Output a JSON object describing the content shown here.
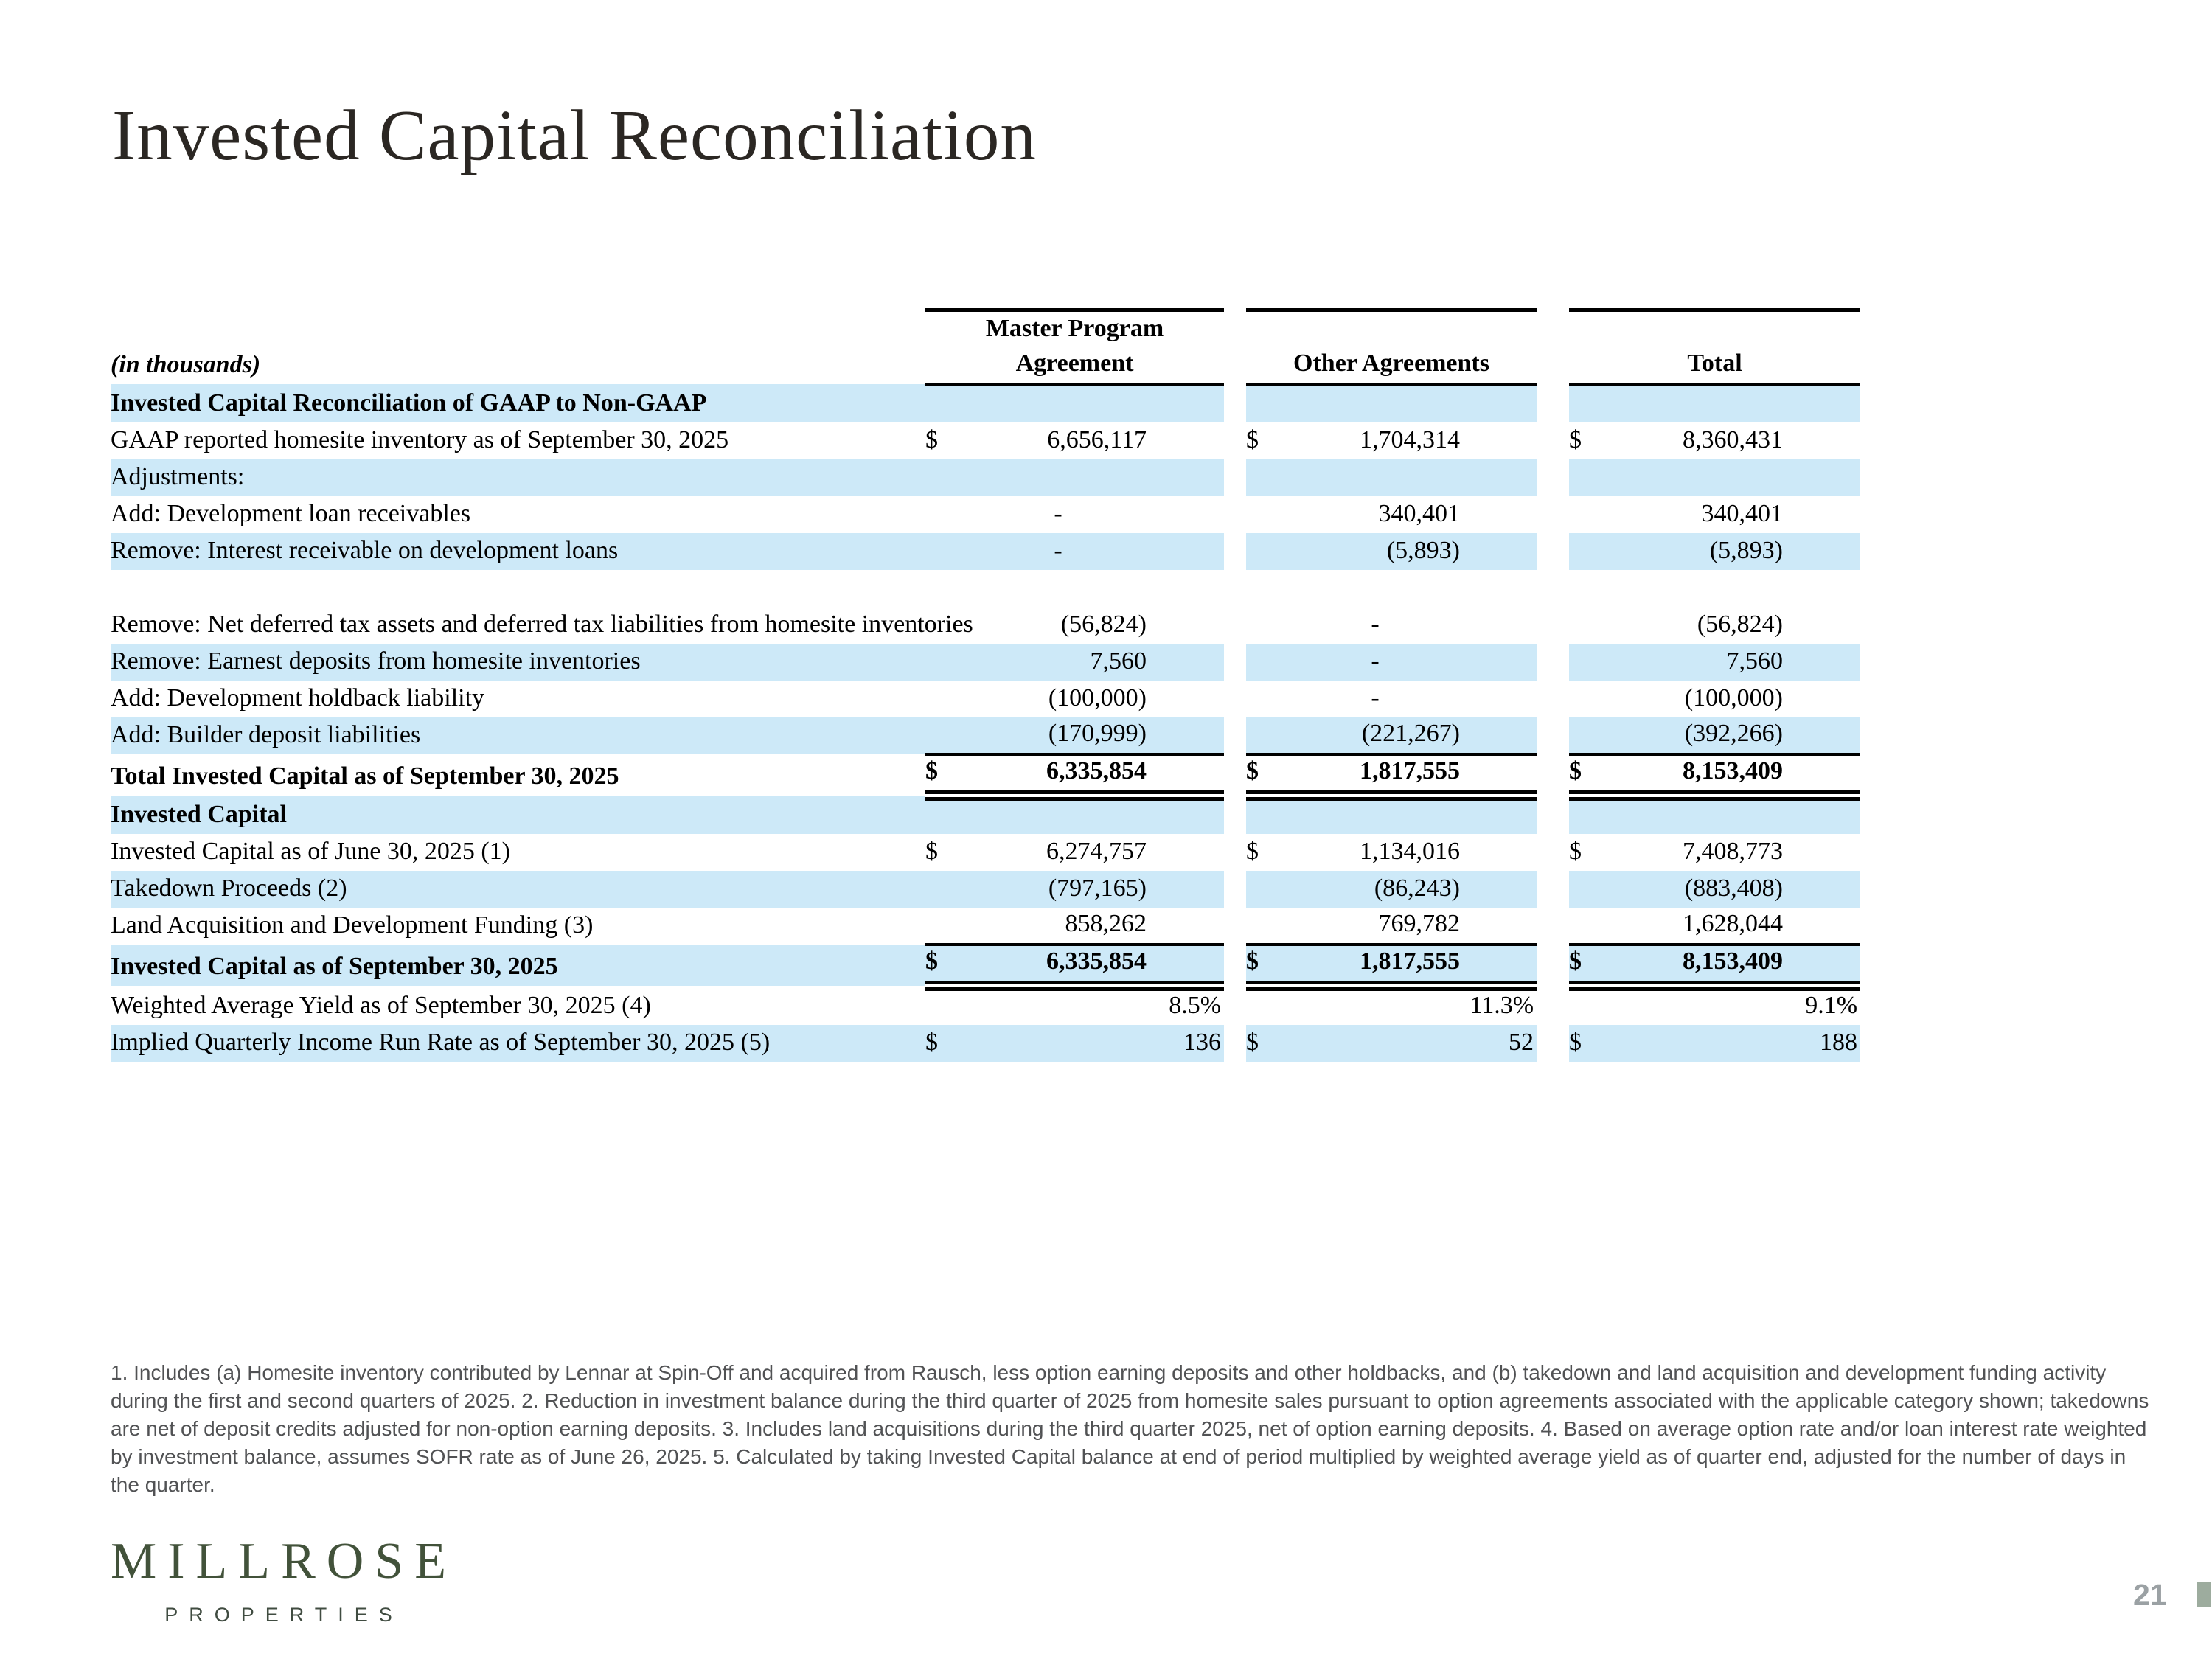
{
  "title": "Invested Capital Reconciliation",
  "table": {
    "corner_label": "(in thousands)",
    "columns": {
      "group1_line1": "Master Program",
      "group1_line2": "Agreement",
      "group2": "Other Agreements",
      "group3": "Total"
    },
    "rows": [
      {
        "label": "Invested Capital Reconciliation of GAAP to Non-GAAP",
        "indent": 0,
        "bold": true,
        "bg": "blue",
        "h": 52,
        "edge": false,
        "rule_top": false,
        "rule_dbl": false,
        "cells": [
          {
            "d": "",
            "v": ""
          },
          {
            "d": "",
            "v": ""
          },
          {
            "d": "",
            "v": ""
          }
        ]
      },
      {
        "label": "GAAP reported homesite inventory as of September 30, 2025",
        "indent": 1,
        "bold": false,
        "bg": "white",
        "h": 50,
        "edge": false,
        "rule_top": false,
        "rule_dbl": false,
        "cells": [
          {
            "d": "$",
            "v": "6,656,117"
          },
          {
            "d": "$",
            "v": "1,704,314"
          },
          {
            "d": "$",
            "v": "8,360,431"
          }
        ]
      },
      {
        "label": "Adjustments:",
        "indent": 1,
        "bold": false,
        "bg": "blue",
        "h": 50,
        "edge": false,
        "rule_top": false,
        "rule_dbl": false,
        "cells": [
          {
            "d": "",
            "v": ""
          },
          {
            "d": "",
            "v": ""
          },
          {
            "d": "",
            "v": ""
          }
        ]
      },
      {
        "label": "Add: Development loan receivables",
        "indent": 2,
        "bold": false,
        "bg": "white",
        "h": 50,
        "edge": false,
        "rule_top": false,
        "rule_dbl": false,
        "cells": [
          {
            "d": "",
            "v": "-"
          },
          {
            "d": "",
            "v": "340,401"
          },
          {
            "d": "",
            "v": "340,401"
          }
        ]
      },
      {
        "label": "Remove: Interest receivable on development loans",
        "indent": 2,
        "bold": false,
        "bg": "blue",
        "h": 50,
        "edge": false,
        "rule_top": false,
        "rule_dbl": false,
        "cells": [
          {
            "d": "",
            "v": "-"
          },
          {
            "d": "",
            "v": "(5,893)"
          },
          {
            "d": "",
            "v": "(5,893)"
          }
        ]
      },
      {
        "label": "Remove: Net deferred tax assets and deferred tax liabilities\nfrom homesite inventories",
        "indent": 2,
        "bold": false,
        "bg": "white",
        "h": 100,
        "edge": false,
        "rule_top": false,
        "rule_dbl": false,
        "cells": [
          {
            "d": "",
            "v": "(56,824)"
          },
          {
            "d": "",
            "v": "-"
          },
          {
            "d": "",
            "v": "(56,824)"
          }
        ]
      },
      {
        "label": "Remove: Earnest deposits from homesite inventories",
        "indent": 2,
        "bold": false,
        "bg": "blue",
        "h": 50,
        "edge": false,
        "rule_top": false,
        "rule_dbl": false,
        "cells": [
          {
            "d": "",
            "v": "7,560"
          },
          {
            "d": "",
            "v": "-"
          },
          {
            "d": "",
            "v": "7,560"
          }
        ]
      },
      {
        "label": "Add: Development holdback liability",
        "indent": 2,
        "bold": false,
        "bg": "white",
        "h": 50,
        "edge": false,
        "rule_top": false,
        "rule_dbl": false,
        "cells": [
          {
            "d": "",
            "v": "(100,000)"
          },
          {
            "d": "",
            "v": "-"
          },
          {
            "d": "",
            "v": "(100,000)"
          }
        ]
      },
      {
        "label": "Add: Builder deposit liabilities",
        "indent": 2,
        "bold": false,
        "bg": "blue",
        "h": 50,
        "edge": false,
        "rule_top": false,
        "rule_dbl": false,
        "cells": [
          {
            "d": "",
            "v": "(170,999)"
          },
          {
            "d": "",
            "v": "(221,267)"
          },
          {
            "d": "",
            "v": "(392,266)"
          }
        ]
      },
      {
        "label": "Total Invested Capital as of September 30, 2025",
        "indent": 0,
        "bold": true,
        "bg": "white",
        "h": 56,
        "edge": false,
        "rule_top": true,
        "rule_dbl": true,
        "cells": [
          {
            "d": "$",
            "v": "6,335,854"
          },
          {
            "d": "$",
            "v": "1,817,555"
          },
          {
            "d": "$",
            "v": "8,153,409"
          }
        ]
      },
      {
        "label": "Invested Capital",
        "indent": 0,
        "bold": true,
        "bg": "blue",
        "h": 52,
        "edge": false,
        "rule_top": false,
        "rule_dbl": false,
        "cells": [
          {
            "d": "",
            "v": ""
          },
          {
            "d": "",
            "v": ""
          },
          {
            "d": "",
            "v": ""
          }
        ]
      },
      {
        "label": "Invested Capital as of June 30, 2025 (1)",
        "indent": 1,
        "bold": false,
        "bg": "white",
        "h": 50,
        "edge": false,
        "rule_top": false,
        "rule_dbl": false,
        "cells": [
          {
            "d": "$",
            "v": "6,274,757"
          },
          {
            "d": "$",
            "v": "1,134,016"
          },
          {
            "d": "$",
            "v": "7,408,773"
          }
        ]
      },
      {
        "label": "Takedown Proceeds (2)",
        "indent": 1,
        "bold": false,
        "bg": "blue",
        "h": 50,
        "edge": false,
        "rule_top": false,
        "rule_dbl": false,
        "cells": [
          {
            "d": "",
            "v": "(797,165)"
          },
          {
            "d": "",
            "v": "(86,243)"
          },
          {
            "d": "",
            "v": "(883,408)"
          }
        ]
      },
      {
        "label": "Land Acquisition and Development Funding (3)",
        "indent": 1,
        "bold": false,
        "bg": "white",
        "h": 50,
        "edge": false,
        "rule_top": false,
        "rule_dbl": false,
        "cells": [
          {
            "d": "",
            "v": "858,262"
          },
          {
            "d": "",
            "v": "769,782"
          },
          {
            "d": "",
            "v": "1,628,044"
          }
        ]
      },
      {
        "label": "Invested Capital as of September 30, 2025",
        "indent": 0,
        "bold": true,
        "bg": "blue",
        "h": 56,
        "edge": false,
        "rule_top": true,
        "rule_dbl": true,
        "cells": [
          {
            "d": "$",
            "v": "6,335,854"
          },
          {
            "d": "$",
            "v": "1,817,555"
          },
          {
            "d": "$",
            "v": "8,153,409"
          }
        ]
      },
      {
        "label": "Weighted Average Yield as of September 30, 2025 (4)",
        "indent": 0,
        "bold": false,
        "bg": "white",
        "h": 50,
        "edge": true,
        "rule_top": false,
        "rule_dbl": false,
        "cells": [
          {
            "d": "",
            "v": "8.5%"
          },
          {
            "d": "",
            "v": "11.3%"
          },
          {
            "d": "",
            "v": "9.1%"
          }
        ]
      },
      {
        "label": "Implied Quarterly Income Run Rate as of September 30, 2025 (5)",
        "indent": 0,
        "bold": false,
        "bg": "blue",
        "h": 50,
        "edge": true,
        "rule_top": false,
        "rule_dbl": false,
        "cells": [
          {
            "d": "$",
            "v": "136"
          },
          {
            "d": "$",
            "v": "52"
          },
          {
            "d": "$",
            "v": "188"
          }
        ]
      }
    ]
  },
  "footnote": "1. Includes (a) Homesite inventory contributed by Lennar at Spin-Off and acquired from Rausch, less option earning deposits and other holdbacks, and (b) takedown and land acquisition and development funding activity during the first and second quarters of 2025. 2. Reduction in investment balance during the third quarter of 2025 from homesite sales pursuant to option agreements associated with the applicable category shown; takedowns are net of deposit credits adjusted for non-option earning deposits. 3. Includes land acquisitions during the third quarter 2025, net of option earning deposits. 4. Based on average option rate and/or loan interest rate weighted by investment balance, assumes SOFR rate as of June 26, 2025. 5. Calculated by taking Invested Capital balance at end of period multiplied by weighted average yield as of quarter end, adjusted for the number of days in the quarter.",
  "logo": {
    "wordmark": "MILLROSE",
    "subtitle": "PROPERTIES"
  },
  "page_number": "21",
  "colors": {
    "row_stripe": "#cde9f8",
    "logo_green": "#42523a",
    "page_number_gray": "#9ba1a4",
    "corner_square_sage": "#9dac9e"
  }
}
